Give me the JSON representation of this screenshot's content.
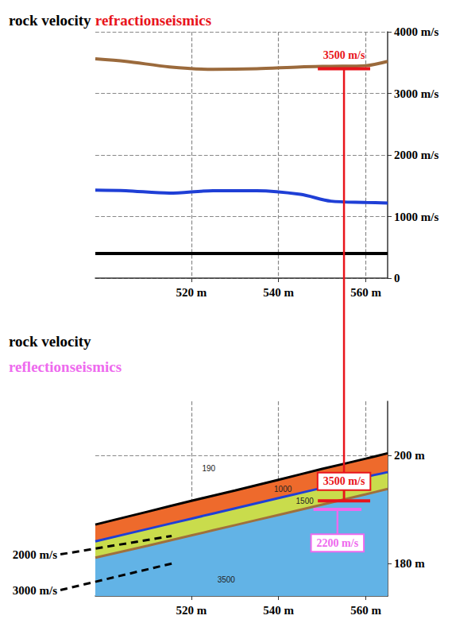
{
  "chart_data": [
    {
      "type": "line",
      "title": [
        [
          {
            "text": "rock velocity",
            "color": "#000000"
          },
          {
            "text": "refractionseismics",
            "color": "#e8141b"
          }
        ]
      ],
      "x": [
        498,
        505,
        515,
        525,
        535,
        545,
        552,
        560,
        565
      ],
      "series": [
        {
          "color": "#9b6a3c",
          "values": [
            3560,
            3520,
            3430,
            3390,
            3400,
            3430,
            3440,
            3450,
            3520
          ]
        },
        {
          "color": "#1f3fd6",
          "values": [
            1430,
            1420,
            1380,
            1420,
            1420,
            1360,
            1250,
            1230,
            1220
          ]
        },
        {
          "color": "#000000",
          "values": [
            400,
            400,
            400,
            400,
            400,
            400,
            400,
            400,
            400
          ]
        }
      ],
      "xlim": [
        498,
        565
      ],
      "xticks": [
        {
          "value": 520,
          "label": "520 m"
        },
        {
          "value": 540,
          "label": "540 m"
        },
        {
          "value": 560,
          "label": "560 m"
        }
      ],
      "ylim": [
        0,
        4000
      ],
      "yticks": [
        0,
        {
          "value": 1000,
          "label": "1000 m/s"
        },
        {
          "value": 2000,
          "label": "2000 m/s"
        },
        {
          "value": 3000,
          "label": "3000 m/s"
        },
        {
          "value": 4000,
          "label": "4000 m/s"
        }
      ],
      "grid": true,
      "markers": [
        {
          "text": "3500 m/s",
          "x": [
            549,
            561
          ],
          "y": 3400,
          "color": "#e8141b"
        }
      ]
    },
    {
      "type": "area",
      "title": [
        [
          {
            "text": "rock velocity",
            "color": "#000000"
          }
        ],
        [
          {
            "text": "reflectionseismics",
            "color": "#ee6aee"
          }
        ]
      ],
      "x": [
        498,
        510,
        520,
        530,
        540,
        550,
        560,
        565
      ],
      "series": [
        {
          "color": "#000000",
          "values": [
            187.2,
            189.6,
            191.6,
            193.5,
            195.5,
            197.5,
            199.4,
            200.4
          ]
        },
        {
          "color": "#1f3fd6",
          "values": [
            184.1,
            186.4,
            188.3,
            190.2,
            192.1,
            194.0,
            196.0,
            196.9
          ]
        },
        {
          "color": "#a0703c",
          "values": [
            181.1,
            183.3,
            185.2,
            187.1,
            189.0,
            190.9,
            192.8,
            193.8
          ]
        }
      ],
      "xlim": [
        498,
        565
      ],
      "xticks": [
        {
          "value": 520,
          "label": "520 m"
        },
        {
          "value": 540,
          "label": "540 m"
        },
        {
          "value": 560,
          "label": "560 m"
        }
      ],
      "ylim": [
        174,
        210
      ],
      "yticks": [
        {
          "value": 180,
          "label": "180 m"
        },
        {
          "value": 200,
          "label": "200 m"
        }
      ],
      "grid": true,
      "markers": [
        {
          "text": "3500 m/s",
          "x": [
            549,
            561
          ],
          "y": 191.6,
          "label_y": 195.2,
          "color": "#e8141b"
        },
        {
          "text": "2200 m/s",
          "x": [
            548,
            559
          ],
          "y": 190.0,
          "label_y": 183.8,
          "color": "#ee6aee"
        }
      ],
      "reference_lines": [
        {
          "text": "2000 m/s",
          "x": [
            490,
            515.5
          ],
          "y": [
            181.7,
            185.1
          ]
        },
        {
          "text": "3000 m/s",
          "x": [
            490,
            515.5
          ],
          "y": [
            175.1,
            180.0
          ]
        }
      ],
      "annotations": [
        {
          "text": "190",
          "x": 524,
          "y": 197.6
        },
        {
          "text": "1000",
          "x": 541,
          "y": 193.8
        },
        {
          "text": "1500",
          "x": 546,
          "y": 191.5
        },
        {
          "text": "3500",
          "x": 528,
          "y": 177
        }
      ]
    }
  ]
}
